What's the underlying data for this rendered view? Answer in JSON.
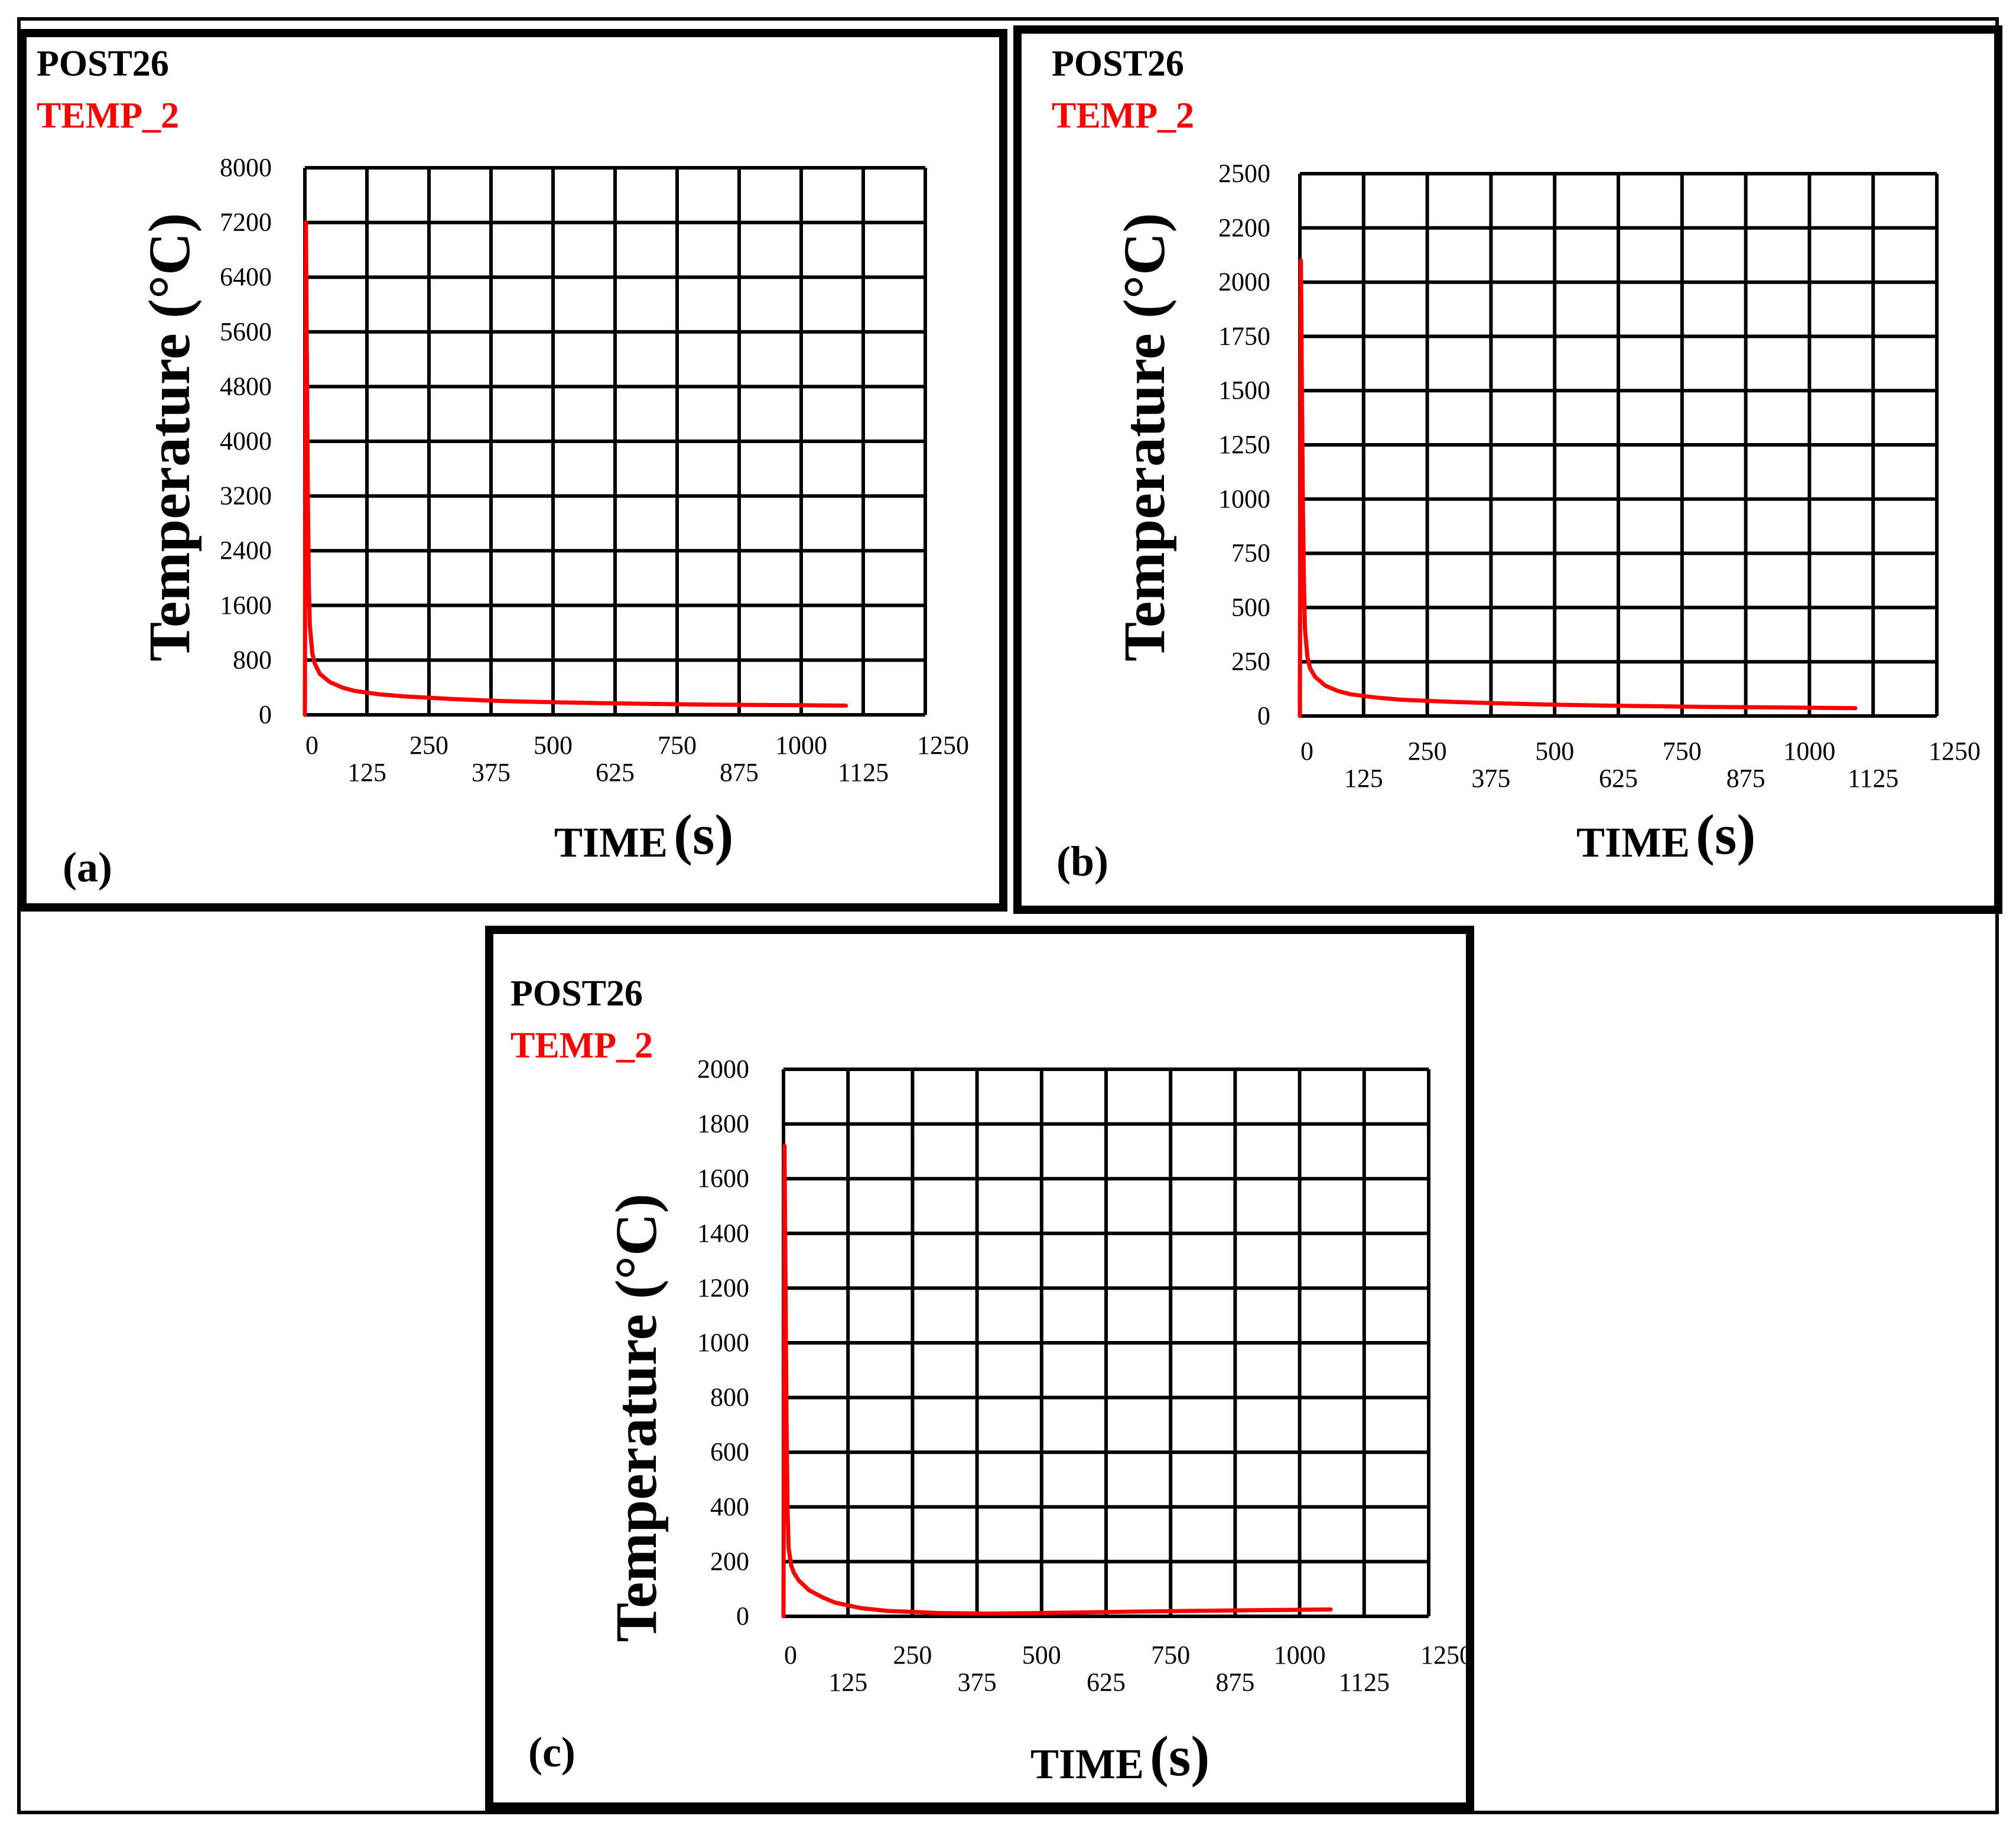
{
  "colors": {
    "series": "#ff0000",
    "grid": "#000000",
    "frame": "#000000"
  },
  "chart_data": [
    {
      "type": "line",
      "panel_label": "(a)",
      "header": "POST26",
      "xlabel": "TIME",
      "xlabel_unit": "(s)",
      "ylabel": "Temperature (°C)",
      "xlim": [
        0,
        1250
      ],
      "ylim": [
        0,
        8000
      ],
      "x_ticks": [
        "0",
        "125",
        "250",
        "375",
        "500",
        "625",
        "750",
        "875",
        "1000",
        "1125",
        "1250"
      ],
      "y_ticks": [
        "0",
        "800",
        "1600",
        "2400",
        "3200",
        "4000",
        "4800",
        "5600",
        "6400",
        "7200",
        "8000"
      ],
      "grid": true,
      "series": [
        {
          "name": "TEMP_2",
          "x": [
            0,
            2,
            4,
            6,
            8,
            10,
            15,
            20,
            30,
            50,
            75,
            100,
            150,
            200,
            300,
            400,
            500,
            600,
            700,
            800,
            900,
            1000,
            1090
          ],
          "y": [
            0,
            7200,
            5200,
            3200,
            1900,
            1300,
            900,
            750,
            600,
            480,
            400,
            350,
            300,
            270,
            230,
            200,
            185,
            170,
            160,
            150,
            145,
            140,
            135
          ]
        }
      ]
    },
    {
      "type": "line",
      "panel_label": "(b)",
      "header": "POST26",
      "xlabel": "TIME",
      "xlabel_unit": "(s)",
      "ylabel": "Temperature (°C)",
      "xlim": [
        0,
        1250
      ],
      "ylim": [
        0,
        2500
      ],
      "x_ticks": [
        "0",
        "125",
        "250",
        "375",
        "500",
        "625",
        "750",
        "875",
        "1000",
        "1125",
        "1250"
      ],
      "y_ticks": [
        "0",
        "250",
        "500",
        "750",
        "1000",
        "1250",
        "1500",
        "1750",
        "2000",
        "2200",
        "2500"
      ],
      "grid": true,
      "series": [
        {
          "name": "TEMP_2",
          "x": [
            0,
            2,
            4,
            6,
            8,
            10,
            15,
            20,
            30,
            50,
            75,
            100,
            150,
            200,
            300,
            400,
            500,
            600,
            700,
            800,
            900,
            1000,
            1090
          ],
          "y": [
            0,
            2100,
            1500,
            950,
            600,
            400,
            270,
            220,
            180,
            140,
            115,
            100,
            85,
            75,
            65,
            58,
            52,
            48,
            45,
            42,
            40,
            38,
            36
          ]
        }
      ]
    },
    {
      "type": "line",
      "panel_label": "(c)",
      "header": "POST26",
      "xlabel": "TIME",
      "xlabel_unit": "(s)",
      "ylabel": "Temperature (°C)",
      "xlim": [
        0,
        1250
      ],
      "ylim": [
        0,
        2000
      ],
      "x_ticks": [
        "0",
        "125",
        "250",
        "375",
        "500",
        "625",
        "750",
        "875",
        "1000",
        "1125",
        "1250"
      ],
      "y_ticks": [
        "0",
        "200",
        "400",
        "600",
        "800",
        "1000",
        "1200",
        "1400",
        "1600",
        "1800",
        "2000"
      ],
      "grid": true,
      "series": [
        {
          "name": "TEMP_2",
          "x": [
            0,
            2,
            4,
            6,
            8,
            10,
            15,
            20,
            30,
            50,
            75,
            100,
            150,
            200,
            300,
            400,
            500,
            600,
            700,
            800,
            900,
            1000,
            1060
          ],
          "y": [
            0,
            1720,
            1200,
            700,
            380,
            250,
            185,
            160,
            130,
            95,
            70,
            50,
            30,
            20,
            12,
            10,
            12,
            15,
            18,
            20,
            22,
            24,
            25
          ]
        }
      ]
    }
  ]
}
